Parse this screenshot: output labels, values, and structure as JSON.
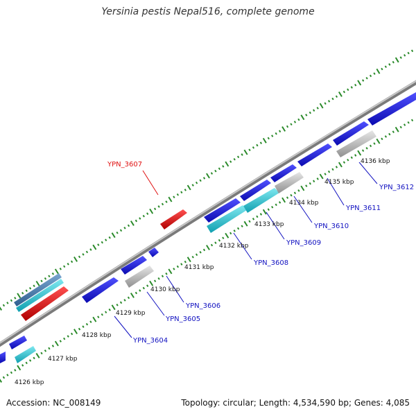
{
  "title": "Yersinia pestis Nepal516, complete genome",
  "footer": {
    "accession": "Accession: NC_008149",
    "summary": "Topology: circular; Length: 4,534,590 bp; Genes: 4,085"
  },
  "colors": {
    "cds_blue": "#1f1fe0",
    "rna_cyan": "#1fb8c8",
    "pseudo_gray": "#b4b4b4",
    "highlight_red": "#e01010",
    "backbone": "#8c8c8c",
    "ticks": "#2a8a2a",
    "label_blue": "#1010c0",
    "label_red": "#e01010"
  },
  "kbp_ticks": [
    "4126 kbp",
    "4127 kbp",
    "4128 kbp",
    "4129 kbp",
    "4130 kbp",
    "4131 kbp",
    "4132 kbp",
    "4133 kbp",
    "4134 kbp",
    "4135 kbp",
    "4136 kbp"
  ],
  "gene_labels": [
    {
      "text": "YPN_3604",
      "color": "blue"
    },
    {
      "text": "YPN_3605",
      "color": "blue"
    },
    {
      "text": "YPN_3606",
      "color": "blue"
    },
    {
      "text": "YPN_3607",
      "color": "red"
    },
    {
      "text": "YPN_3608",
      "color": "blue"
    },
    {
      "text": "YPN_3609",
      "color": "blue"
    },
    {
      "text": "YPN_3610",
      "color": "blue"
    },
    {
      "text": "YPN_3611",
      "color": "blue"
    },
    {
      "text": "YPN_3612",
      "color": "blue"
    }
  ]
}
